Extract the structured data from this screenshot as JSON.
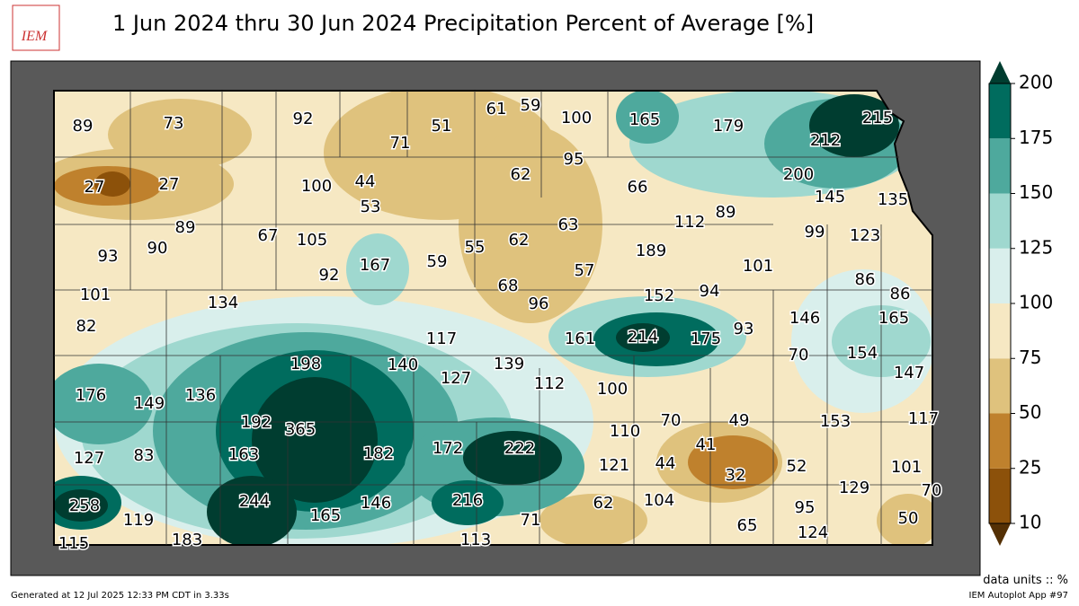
{
  "title": "1 Jun 2024 thru 30 Jun 2024 Precipitation Percent of Average [%]",
  "logo": "IEM",
  "units": "data units :: %",
  "generated": "Generated at 12 Jul 2025 12:33 PM CDT in 3.33s",
  "app": "IEM Autoplot App #97",
  "colorbar": {
    "ticks": [
      10,
      25,
      50,
      75,
      100,
      125,
      150,
      175,
      200
    ],
    "colors": [
      "#8c510a",
      "#bf812d",
      "#dfc27d",
      "#f6e8c3",
      "#d9efec",
      "#9fd8cf",
      "#4ea99d",
      "#006c5e"
    ],
    "under": "#543005",
    "over": "#003d30"
  },
  "stations": [
    89,
    73,
    92,
    71,
    51,
    61,
    59,
    100,
    165,
    179,
    215,
    212,
    27,
    27,
    100,
    44,
    53,
    62,
    95,
    66,
    200,
    145,
    135,
    89,
    67,
    105,
    93,
    90,
    55,
    62,
    63,
    112,
    89,
    99,
    123,
    59,
    167,
    92,
    189,
    101,
    57,
    68,
    86,
    86,
    101,
    134,
    96,
    152,
    94,
    82,
    146,
    165,
    117,
    161,
    214,
    175,
    93,
    198,
    140,
    139,
    70,
    154,
    127,
    112,
    100,
    147,
    176,
    149,
    136,
    192,
    365,
    70,
    49,
    153,
    117,
    110,
    182,
    172,
    222,
    41,
    127,
    83,
    163,
    121,
    44,
    52,
    101,
    32,
    129,
    70,
    258,
    244,
    146,
    216,
    62,
    104,
    95,
    165,
    71,
    119,
    50,
    65,
    124,
    183,
    113,
    115
  ]
}
